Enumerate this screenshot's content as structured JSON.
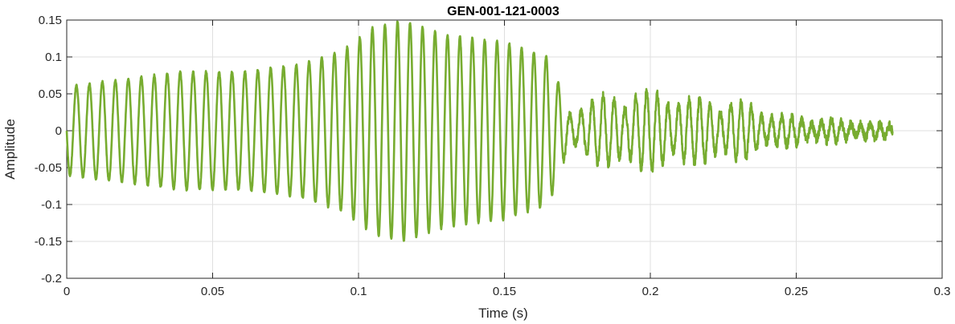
{
  "chart_data": {
    "type": "line",
    "title": "GEN-001-121-0003",
    "xlabel": "Time (s)",
    "ylabel": "Amplitude",
    "xlim": [
      0,
      0.3
    ],
    "ylim": [
      -0.2,
      0.15
    ],
    "xticks": [
      0,
      0.05,
      0.1,
      0.15,
      0.2,
      0.25,
      0.3
    ],
    "xtick_labels": [
      "0",
      "0.05",
      "0.1",
      "0.15",
      "0.2",
      "0.25",
      "0.3"
    ],
    "yticks": [
      -0.2,
      -0.15,
      -0.1,
      -0.05,
      0,
      0.05,
      0.1,
      0.15
    ],
    "ytick_labels": [
      "-0.2",
      "-0.15",
      "-0.1",
      "-0.05",
      "0",
      "0.05",
      "0.1",
      "0.15"
    ],
    "grid": true,
    "series": [
      {
        "color": "#77ac30",
        "t_end": 0.283,
        "envelope": [
          [
            0.0,
            0.06
          ],
          [
            0.02,
            0.07
          ],
          [
            0.04,
            0.08
          ],
          [
            0.06,
            0.08
          ],
          [
            0.08,
            0.09
          ],
          [
            0.095,
            0.11
          ],
          [
            0.105,
            0.14
          ],
          [
            0.115,
            0.15
          ],
          [
            0.13,
            0.13
          ],
          [
            0.15,
            0.12
          ],
          [
            0.165,
            0.1
          ],
          [
            0.172,
            0.03
          ],
          [
            0.185,
            0.05
          ],
          [
            0.2,
            0.055
          ],
          [
            0.215,
            0.045
          ],
          [
            0.23,
            0.04
          ],
          [
            0.245,
            0.02
          ],
          [
            0.26,
            0.015
          ],
          [
            0.283,
            0.008
          ]
        ]
      }
    ]
  }
}
